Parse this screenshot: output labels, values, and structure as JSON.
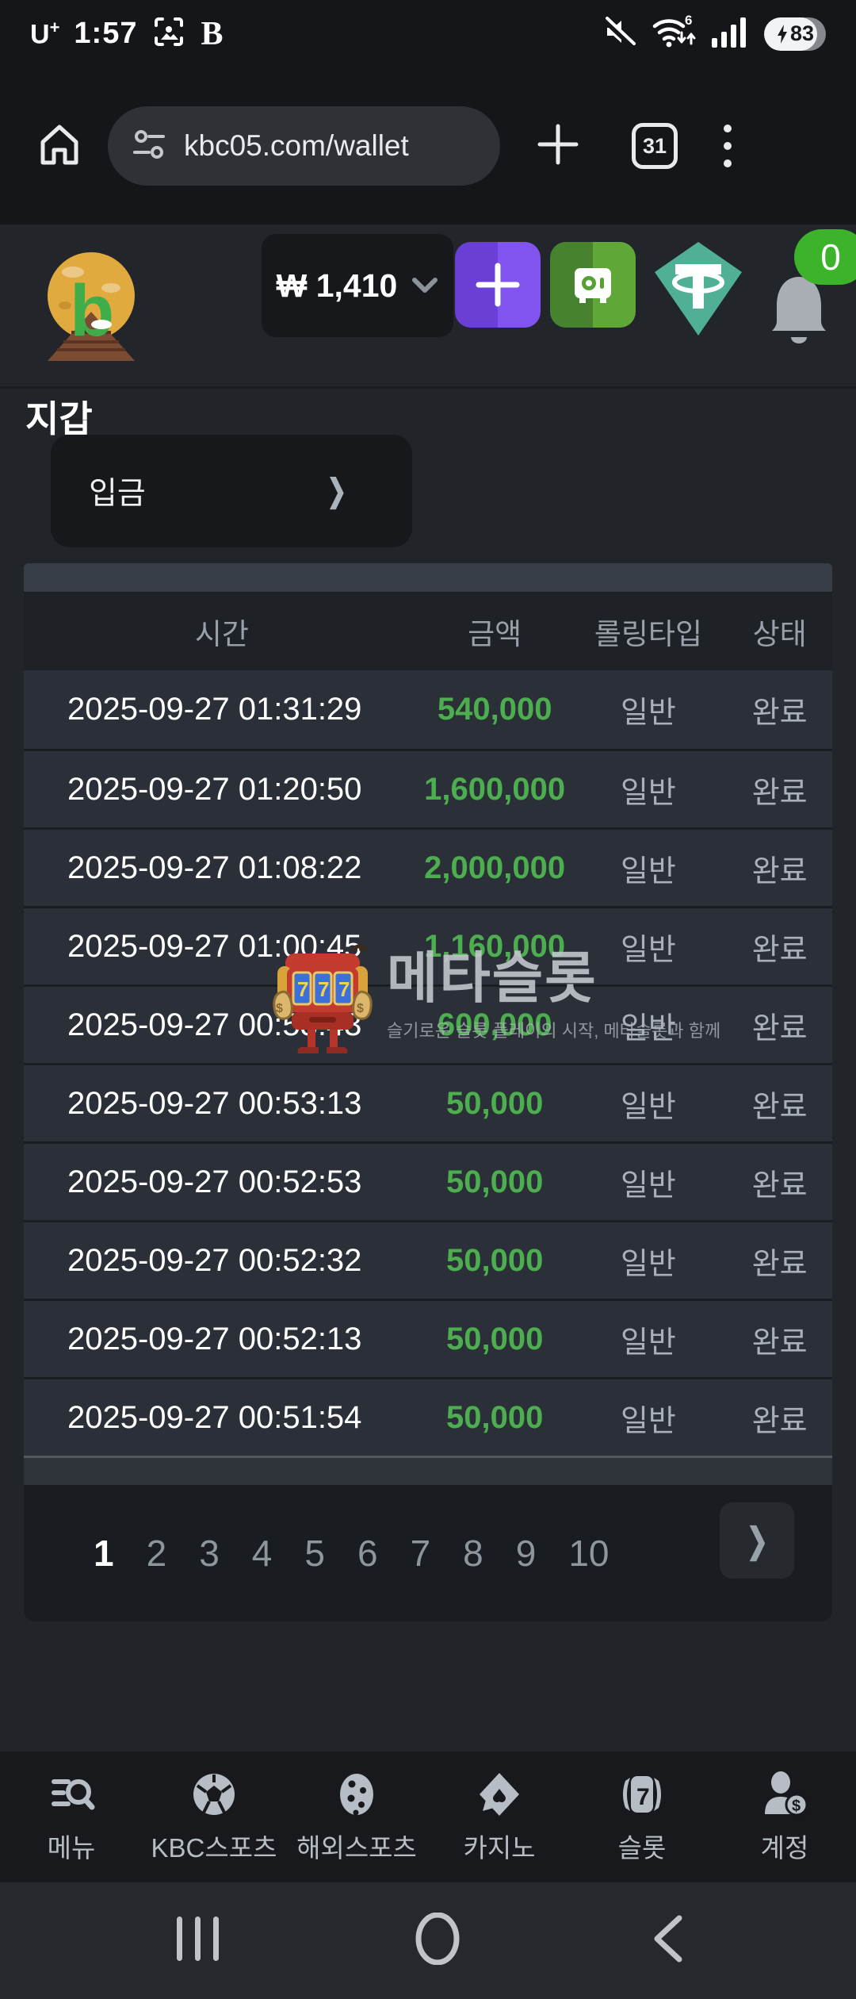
{
  "status_bar": {
    "carrier": "U+",
    "time": "1:57",
    "battery_level": "83"
  },
  "browser": {
    "url": "kbc05.com/wallet",
    "tab_count": "31"
  },
  "site_header": {
    "balance": "₩ 1,410",
    "notification_count": "0"
  },
  "wallet": {
    "title": "지갑",
    "deposit_label": "입금"
  },
  "table": {
    "headers": [
      "시간",
      "금액",
      "롤링타입",
      "상태"
    ],
    "rows": [
      {
        "time": "2025-09-27 01:31:29",
        "amount": "540,000",
        "type": "일반",
        "status": "완료"
      },
      {
        "time": "2025-09-27 01:20:50",
        "amount": "1,600,000",
        "type": "일반",
        "status": "완료"
      },
      {
        "time": "2025-09-27 01:08:22",
        "amount": "2,000,000",
        "type": "일반",
        "status": "완료"
      },
      {
        "time": "2025-09-27 01:00:45",
        "amount": "1,160,000",
        "type": "일반",
        "status": "완료"
      },
      {
        "time": "2025-09-27 00:53:43",
        "amount": "600,000",
        "type": "일반",
        "status": "완료"
      },
      {
        "time": "2025-09-27 00:53:13",
        "amount": "50,000",
        "type": "일반",
        "status": "완료"
      },
      {
        "time": "2025-09-27 00:52:53",
        "amount": "50,000",
        "type": "일반",
        "status": "완료"
      },
      {
        "time": "2025-09-27 00:52:32",
        "amount": "50,000",
        "type": "일반",
        "status": "완료"
      },
      {
        "time": "2025-09-27 00:52:13",
        "amount": "50,000",
        "type": "일반",
        "status": "완료"
      },
      {
        "time": "2025-09-27 00:51:54",
        "amount": "50,000",
        "type": "일반",
        "status": "완료"
      }
    ]
  },
  "watermark": {
    "slot_text": "777",
    "brand": "메타슬롯",
    "slogan": "슬기로운 슬롯 플레이의 시작, 메타슬롯과 함께"
  },
  "pagination": {
    "pages": [
      "1",
      "2",
      "3",
      "4",
      "5",
      "6",
      "7",
      "8",
      "9",
      "10"
    ],
    "active": "1"
  },
  "bottom_nav": {
    "items": [
      {
        "label": "메뉴"
      },
      {
        "label": "KBC스포츠"
      },
      {
        "label": "해외스포츠"
      },
      {
        "label": "카지노"
      },
      {
        "label": "슬롯"
      },
      {
        "label": "계정"
      }
    ]
  },
  "colors": {
    "accent_green": "#4cae4f",
    "purple": "#7a4fe9",
    "tether_teal": "#4fb095",
    "badge_green": "#3db32c"
  }
}
